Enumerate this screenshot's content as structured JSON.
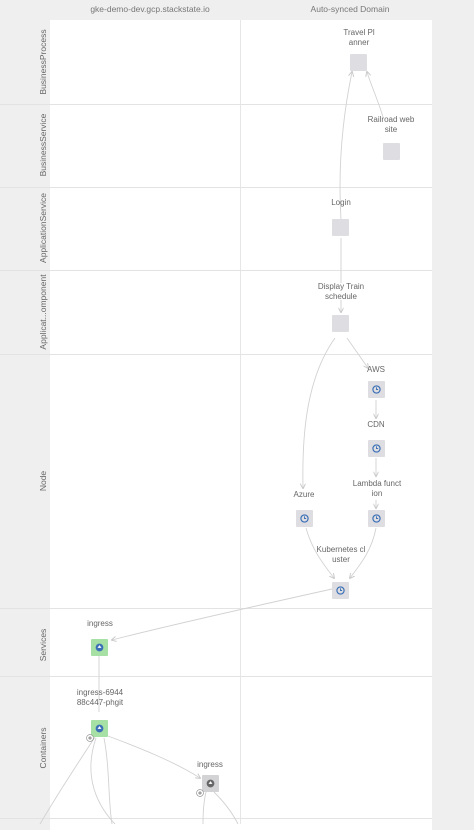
{
  "columns": {
    "left": "gke-demo-dev.gcp.stackstate.io",
    "right": "Auto-synced Domain"
  },
  "layers": [
    "BusinessProcess",
    "BusinessService",
    "ApplicationService",
    "Applicat...omponent",
    "Node",
    "Services",
    "Containers"
  ],
  "nodes": {
    "travel_planner": {
      "label_1": "Travel Pl",
      "label_2": "anner",
      "icon": "component-box"
    },
    "railroad_web_site": {
      "label_1": "Railroad web",
      "label_2": "site",
      "icon": "component-box"
    },
    "login": {
      "label_1": "Login",
      "icon": "component-box"
    },
    "display_train_schedule": {
      "label_1": "Display Train",
      "label_2": "schedule",
      "icon": "component-box"
    },
    "aws": {
      "label_1": "AWS",
      "icon": "clock-icon"
    },
    "cdn": {
      "label_1": "CDN",
      "icon": "clock-icon"
    },
    "lambda_function": {
      "label_1": "Lambda funct",
      "label_2": "ion",
      "icon": "clock-icon"
    },
    "azure": {
      "label_1": "Azure",
      "icon": "clock-icon"
    },
    "kubernetes_cluster": {
      "label_1": "Kubernetes cl",
      "label_2": "uster",
      "icon": "clock-icon"
    },
    "ingress_service": {
      "label_1": "ingress",
      "icon": "up-arrow-icon",
      "health": "green"
    },
    "ingress_pod": {
      "label_1": "ingress-6944",
      "label_2": "88c447-phgit",
      "icon": "up-arrow-icon",
      "health": "green"
    },
    "ingress_container": {
      "label_1": "ingress",
      "icon": "up-arrow-icon",
      "health": "grey"
    }
  },
  "colors": {
    "background": "#efefef",
    "panel": "#ffffff",
    "node_box": "#dedee2",
    "health_green": "#a7e0a4",
    "icon_blue": "#3b6fb6",
    "edge": "#cfcfcf"
  }
}
